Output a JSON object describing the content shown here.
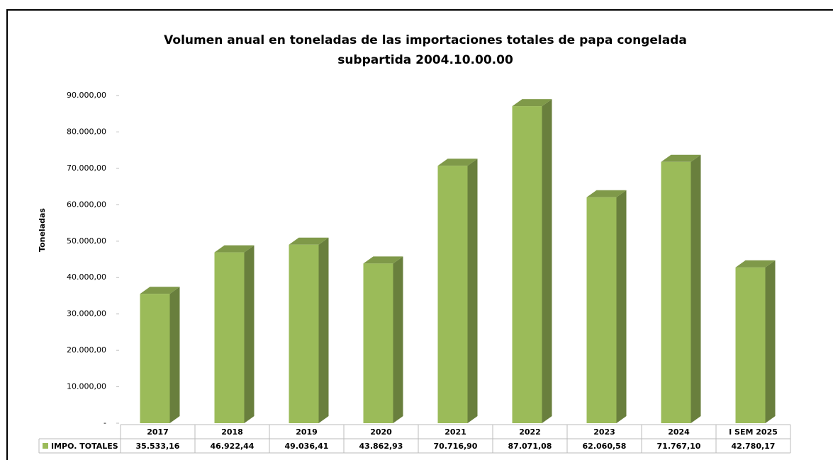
{
  "chart_data": {
    "type": "bar3d",
    "title": [
      "Volumen anual en toneladas de las importaciones totales de papa congelada",
      "subpartida 2004.10.00.00"
    ],
    "y_label": "Toneladas",
    "categories": [
      "2017",
      "2018",
      "2019",
      "2020",
      "2021",
      "2022",
      "2023",
      "2024",
      "I SEM 2025"
    ],
    "series": [
      {
        "name": "IMPO. TOTALES",
        "color": "#9bbb59",
        "values": [
          35533.16,
          46922.44,
          49036.41,
          43862.93,
          70716.9,
          87071.08,
          62060.58,
          71767.1,
          42780.17
        ],
        "value_labels": [
          "35.533,16",
          "46.922,44",
          "49.036,41",
          "43.862,93",
          "70.716,90",
          "87.071,08",
          "62.060,58",
          "71.767,10",
          "42.780,17"
        ]
      }
    ],
    "ylim": [
      0,
      90000
    ],
    "yticks": [
      {
        "value": 0,
        "label": "-"
      },
      {
        "value": 10000,
        "label": "10.000,00"
      },
      {
        "value": 20000,
        "label": "20.000,00"
      },
      {
        "value": 30000,
        "label": "30.000,00"
      },
      {
        "value": 40000,
        "label": "40.000,00"
      },
      {
        "value": 50000,
        "label": "50.000,00"
      },
      {
        "value": 60000,
        "label": "60.000,00"
      },
      {
        "value": 70000,
        "label": "70.000,00"
      },
      {
        "value": 80000,
        "label": "80.000,00"
      },
      {
        "value": 90000,
        "label": "90.000,00"
      }
    ]
  }
}
